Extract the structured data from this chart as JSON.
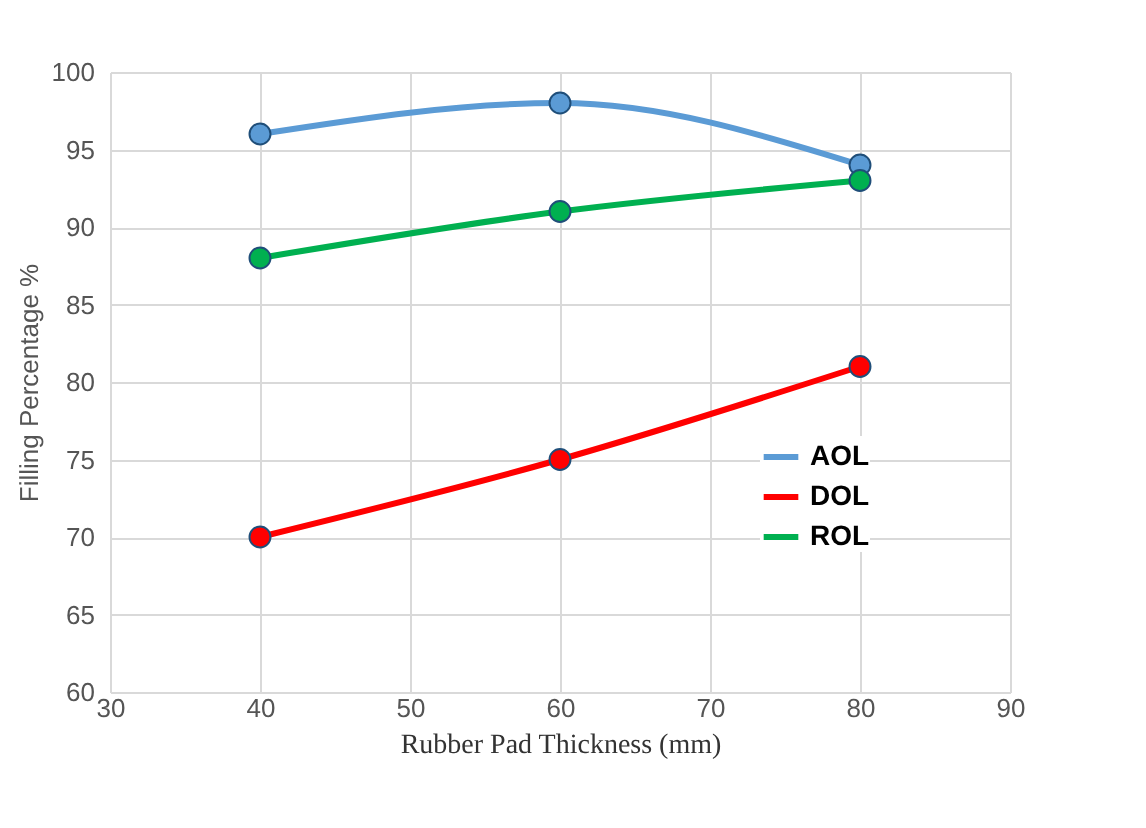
{
  "chart_data": {
    "type": "line",
    "xlabel": "Rubber Pad Thickness (mm)",
    "ylabel": "Filling Percentage %",
    "x": [
      40,
      60,
      80
    ],
    "series": [
      {
        "name": "AOL",
        "color": "#5b9bd5",
        "values": [
          96,
          98,
          94
        ]
      },
      {
        "name": "DOL",
        "color": "#ff0000",
        "values": [
          70,
          75,
          81
        ]
      },
      {
        "name": "ROL",
        "color": "#00b050",
        "values": [
          88,
          91,
          93
        ]
      }
    ],
    "xlim": [
      30,
      90
    ],
    "xticks": [
      30,
      40,
      50,
      60,
      70,
      80,
      90
    ],
    "ylim": [
      60,
      100
    ],
    "yticks": [
      60,
      65,
      70,
      75,
      80,
      85,
      90,
      95,
      100
    ],
    "grid": true,
    "legend": "bottom right",
    "marker": "circle",
    "line_style": "solid"
  }
}
